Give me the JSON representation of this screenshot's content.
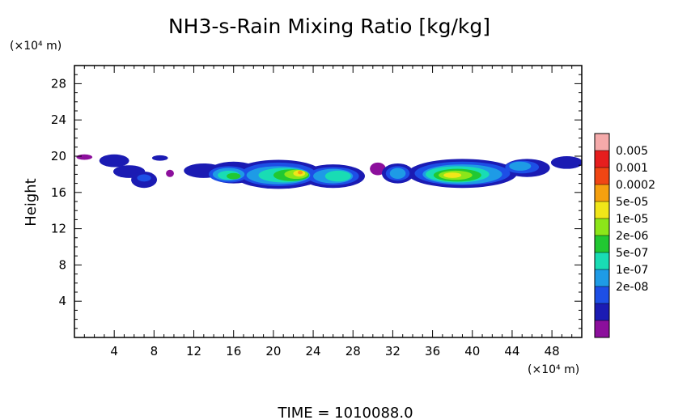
{
  "chart_data": {
    "type": "heatmap",
    "title": "NH3-s-Rain Mixing Ratio [kg/kg]",
    "xlabel": "",
    "ylabel": "Height",
    "x_unit": "(×10⁴ m)",
    "y_unit": "(×10⁴ m)",
    "xlim": [
      0,
      51
    ],
    "ylim": [
      0,
      30
    ],
    "x_ticks": [
      "4",
      "8",
      "12",
      "16",
      "20",
      "24",
      "28",
      "32",
      "36",
      "40",
      "44",
      "48"
    ],
    "y_ticks": [
      "4",
      "8",
      "12",
      "16",
      "20",
      "24",
      "28"
    ],
    "footer": "TIME  =  1010088.0",
    "colorbar": {
      "labels": [
        "0.005",
        "0.001",
        "0.0002",
        "5e-05",
        "1e-05",
        "2e-06",
        "5e-07",
        "1e-07",
        "2e-08"
      ],
      "colors": [
        "#8c0f9c",
        "#1b1bb3",
        "#1d4fe6",
        "#1e9be6",
        "#19dcb4",
        "#21c832",
        "#8ce619",
        "#f0e619",
        "#f5a00f",
        "#f04614",
        "#e61e1e",
        "#f5aaaa"
      ]
    },
    "field": [
      {
        "x": 1.0,
        "y": 19.9,
        "rx": 0.8,
        "ry": 0.3,
        "level": 0
      },
      {
        "x": 4.0,
        "y": 19.5,
        "rx": 1.5,
        "ry": 0.7,
        "level": 1
      },
      {
        "x": 5.5,
        "y": 18.3,
        "rx": 1.6,
        "ry": 0.7,
        "level": 1
      },
      {
        "x": 7.0,
        "y": 17.4,
        "rx": 1.3,
        "ry": 0.9,
        "level": 1
      },
      {
        "x": 7.0,
        "y": 17.6,
        "rx": 0.7,
        "ry": 0.4,
        "level": 2
      },
      {
        "x": 8.6,
        "y": 19.8,
        "rx": 0.8,
        "ry": 0.3,
        "level": 1
      },
      {
        "x": 9.6,
        "y": 18.1,
        "rx": 0.4,
        "ry": 0.4,
        "level": 0
      },
      {
        "x": 13.0,
        "y": 18.4,
        "rx": 2.0,
        "ry": 0.8,
        "level": 1
      },
      {
        "x": 16.0,
        "y": 18.2,
        "rx": 2.6,
        "ry": 1.2,
        "level": 1
      },
      {
        "x": 20.5,
        "y": 18.0,
        "rx": 4.5,
        "ry": 1.6,
        "level": 1
      },
      {
        "x": 26.0,
        "y": 17.8,
        "rx": 3.2,
        "ry": 1.3,
        "level": 1
      },
      {
        "x": 30.5,
        "y": 18.6,
        "rx": 0.8,
        "ry": 0.7,
        "level": 0
      },
      {
        "x": 32.5,
        "y": 18.1,
        "rx": 1.6,
        "ry": 1.1,
        "level": 1
      },
      {
        "x": 39.0,
        "y": 18.1,
        "rx": 5.5,
        "ry": 1.6,
        "level": 1
      },
      {
        "x": 45.5,
        "y": 18.7,
        "rx": 2.3,
        "ry": 1.0,
        "level": 1
      },
      {
        "x": 49.5,
        "y": 19.3,
        "rx": 1.6,
        "ry": 0.7,
        "level": 1
      },
      {
        "x": 15.5,
        "y": 18.0,
        "rx": 2.0,
        "ry": 0.9,
        "level": 2
      },
      {
        "x": 20.5,
        "y": 18.0,
        "rx": 3.8,
        "ry": 1.3,
        "level": 2
      },
      {
        "x": 26.0,
        "y": 17.8,
        "rx": 2.6,
        "ry": 1.0,
        "level": 2
      },
      {
        "x": 32.5,
        "y": 18.1,
        "rx": 1.2,
        "ry": 0.8,
        "level": 2
      },
      {
        "x": 39.0,
        "y": 18.1,
        "rx": 4.8,
        "ry": 1.3,
        "level": 2
      },
      {
        "x": 45.0,
        "y": 18.8,
        "rx": 1.7,
        "ry": 0.7,
        "level": 2
      },
      {
        "x": 15.5,
        "y": 18.0,
        "rx": 1.6,
        "ry": 0.7,
        "level": 3
      },
      {
        "x": 20.5,
        "y": 17.9,
        "rx": 3.2,
        "ry": 1.0,
        "level": 3
      },
      {
        "x": 26.0,
        "y": 17.8,
        "rx": 2.0,
        "ry": 0.8,
        "level": 3
      },
      {
        "x": 32.5,
        "y": 18.1,
        "rx": 0.8,
        "ry": 0.6,
        "level": 3
      },
      {
        "x": 39.0,
        "y": 18.0,
        "rx": 4.0,
        "ry": 1.1,
        "level": 3
      },
      {
        "x": 44.8,
        "y": 18.9,
        "rx": 1.1,
        "ry": 0.5,
        "level": 3
      },
      {
        "x": 15.5,
        "y": 17.9,
        "rx": 1.1,
        "ry": 0.5,
        "level": 4
      },
      {
        "x": 21.0,
        "y": 17.9,
        "rx": 2.5,
        "ry": 0.8,
        "level": 4
      },
      {
        "x": 26.5,
        "y": 17.8,
        "rx": 1.3,
        "ry": 0.6,
        "level": 4
      },
      {
        "x": 38.5,
        "y": 18.0,
        "rx": 3.2,
        "ry": 0.9,
        "level": 4
      },
      {
        "x": 16.0,
        "y": 17.8,
        "rx": 0.7,
        "ry": 0.35,
        "level": 5
      },
      {
        "x": 21.8,
        "y": 17.9,
        "rx": 1.8,
        "ry": 0.65,
        "level": 5
      },
      {
        "x": 38.5,
        "y": 17.9,
        "rx": 2.4,
        "ry": 0.7,
        "level": 5
      },
      {
        "x": 22.3,
        "y": 18.0,
        "rx": 1.2,
        "ry": 0.5,
        "level": 6
      },
      {
        "x": 38.3,
        "y": 17.9,
        "rx": 1.7,
        "ry": 0.5,
        "level": 6
      },
      {
        "x": 22.6,
        "y": 18.1,
        "rx": 0.6,
        "ry": 0.35,
        "level": 7
      },
      {
        "x": 38.0,
        "y": 17.9,
        "rx": 0.9,
        "ry": 0.3,
        "level": 7
      },
      {
        "x": 22.7,
        "y": 18.2,
        "rx": 0.25,
        "ry": 0.2,
        "level": 8
      }
    ]
  }
}
